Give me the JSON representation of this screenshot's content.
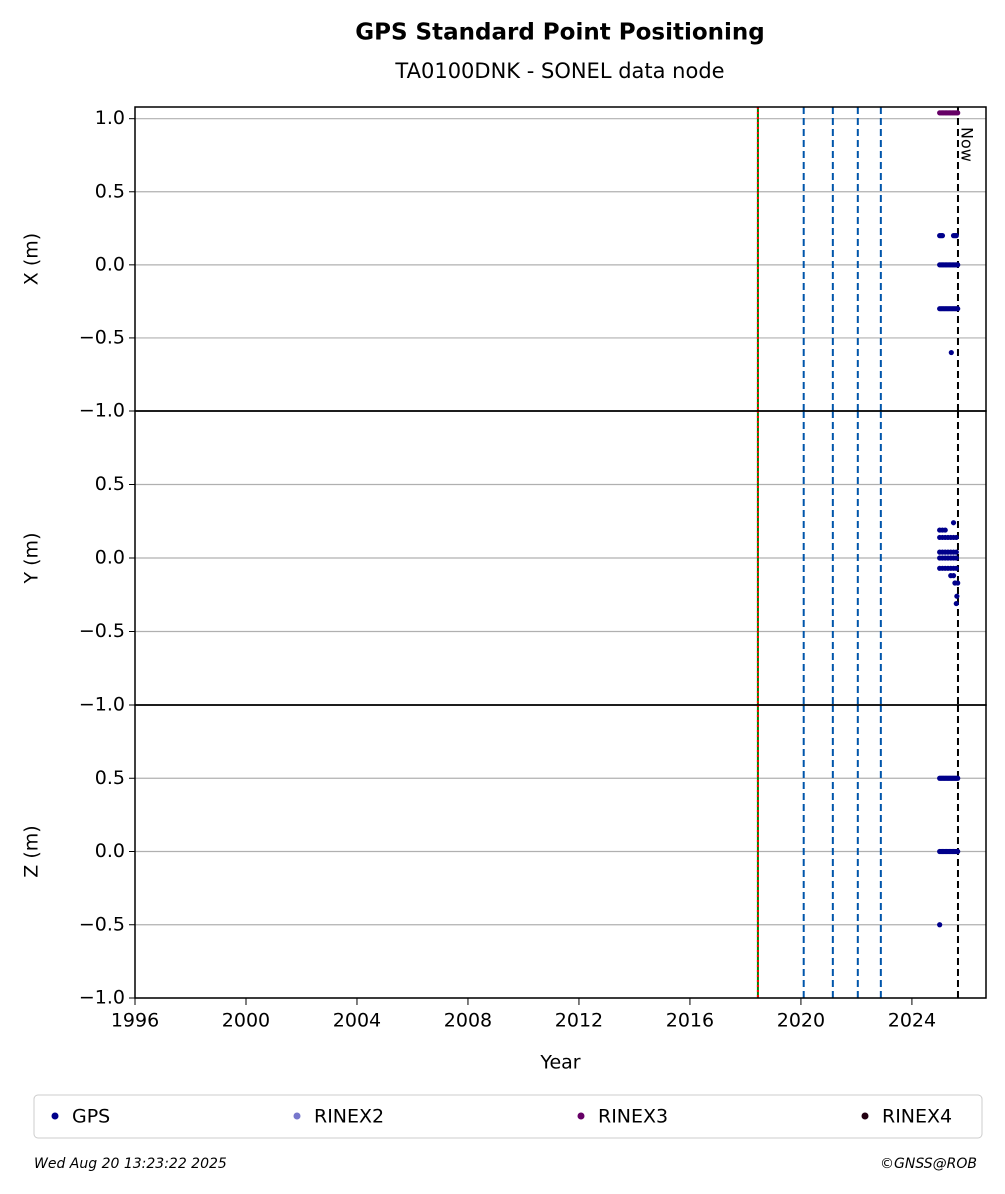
{
  "title": "GPS Standard Point Positioning",
  "subtitle": "TA0100DNK - SONEL data node",
  "footer_left": "Wed Aug 20 13:23:22 2025",
  "footer_right": "©GNSS@ROB",
  "legend": [
    {
      "name": "GPS",
      "color": "#00008b"
    },
    {
      "name": "RINEX2",
      "color": "#7777cc"
    },
    {
      "name": "RINEX3",
      "color": "#660066"
    },
    {
      "name": "RINEX4",
      "color": "#220011"
    }
  ],
  "vlines": [
    {
      "x": 2018.45,
      "color": "#008000",
      "style": "solid"
    },
    {
      "x": 2018.45,
      "color": "#ff0000",
      "style": "dotted"
    },
    {
      "x": 2020.1,
      "color": "#0055aa",
      "style": "dashed"
    },
    {
      "x": 2021.15,
      "color": "#0055aa",
      "style": "dashed"
    },
    {
      "x": 2022.05,
      "color": "#0055aa",
      "style": "dashed"
    },
    {
      "x": 2022.88,
      "color": "#0055aa",
      "style": "dashed"
    },
    {
      "x": 2025.66,
      "color": "#000000",
      "style": "dashed",
      "label": "Now"
    }
  ],
  "chart_data": [
    {
      "type": "scatter",
      "ylabel": "X (m)",
      "xlim": [
        1996,
        2026.67
      ],
      "ylim": [
        -1,
        1.08
      ],
      "grid": true,
      "yticks": [
        {
          "value": -1,
          "label": "−1.0"
        },
        {
          "value": -0.5,
          "label": "−0.5"
        },
        {
          "value": 0,
          "label": "0.0"
        },
        0.5,
        {
          "value": 1,
          "label": "1.0"
        }
      ],
      "series": [
        {
          "name": "GPS",
          "color": "#00008b",
          "x": [
            2025.0,
            2025.05,
            2025.1,
            2025.15,
            2025.2,
            2025.25,
            2025.3,
            2025.35,
            2025.4,
            2025.45,
            2025.5,
            2025.55,
            2025.6,
            2025.65,
            2025.0,
            2025.05,
            2025.1,
            2025.15,
            2025.2,
            2025.25,
            2025.3,
            2025.35,
            2025.4,
            2025.45,
            2025.5,
            2025.55,
            2025.6,
            2025.65,
            2025.0,
            2025.05,
            2025.1,
            2025.5,
            2025.55,
            2025.6,
            2025.42
          ],
          "values": [
            0,
            0,
            0,
            0,
            0,
            0,
            0,
            0,
            0,
            0,
            0,
            0,
            0,
            0,
            -0.3,
            -0.3,
            -0.3,
            -0.3,
            -0.3,
            -0.3,
            -0.3,
            -0.3,
            -0.3,
            -0.3,
            -0.3,
            -0.3,
            -0.3,
            -0.3,
            0.2,
            0.2,
            0.2,
            0.2,
            0.2,
            0.2,
            -0.6
          ]
        },
        {
          "name": "RINEX3",
          "color": "#660066",
          "x": [
            2025.0,
            2025.05,
            2025.1,
            2025.15,
            2025.2,
            2025.25,
            2025.3,
            2025.35,
            2025.4,
            2025.45,
            2025.5,
            2025.55,
            2025.6,
            2025.65
          ],
          "values": [
            1.04,
            1.04,
            1.04,
            1.04,
            1.04,
            1.04,
            1.04,
            1.04,
            1.04,
            1.04,
            1.04,
            1.04,
            1.04,
            1.04
          ]
        }
      ]
    },
    {
      "type": "scatter",
      "ylabel": "Y (m)",
      "xlim": [
        1996,
        2026.67
      ],
      "ylim": [
        -1,
        1
      ],
      "grid": true,
      "yticks": [
        {
          "value": -1,
          "label": "−1.0"
        },
        {
          "value": -0.5,
          "label": "−0.5"
        },
        {
          "value": 0,
          "label": "0.0"
        },
        0.5
      ],
      "series": [
        {
          "name": "GPS",
          "color": "#00008b",
          "x": [
            2025.0,
            2025.1,
            2025.2,
            2025.3,
            2025.4,
            2025.5,
            2025.6,
            2025.0,
            2025.1,
            2025.2,
            2025.3,
            2025.4,
            2025.5,
            2025.6,
            2025.0,
            2025.1,
            2025.2,
            2025.3,
            2025.4,
            2025.5,
            2025.6,
            2025.0,
            2025.1,
            2025.2,
            2025.3,
            2025.4,
            2025.5,
            2025.6,
            2025.0,
            2025.1,
            2025.2,
            2025.5,
            2025.4,
            2025.5,
            2025.55,
            2025.65,
            2025.62,
            2025.6
          ],
          "values": [
            0.14,
            0.14,
            0.14,
            0.14,
            0.14,
            0.14,
            0.14,
            0.04,
            0.04,
            0.04,
            0.04,
            0.04,
            0.04,
            0.04,
            0,
            0,
            0,
            0,
            0,
            0,
            0,
            -0.07,
            -0.07,
            -0.07,
            -0.07,
            -0.07,
            -0.07,
            -0.07,
            0.19,
            0.19,
            0.19,
            0.24,
            -0.12,
            -0.12,
            -0.17,
            -0.17,
            -0.26,
            -0.31
          ]
        }
      ]
    },
    {
      "type": "scatter",
      "ylabel": "Z (m)",
      "xlabel": "Year",
      "xlim": [
        1996,
        2026.67
      ],
      "ylim": [
        -1,
        1
      ],
      "grid": true,
      "xticks": [
        1996,
        2000,
        2004,
        2008,
        2012,
        2016,
        2020,
        2024
      ],
      "yticks": [
        {
          "value": -1,
          "label": "−1.0"
        },
        {
          "value": -0.5,
          "label": "−0.5"
        },
        {
          "value": 0,
          "label": "0.0"
        },
        0.5
      ],
      "series": [
        {
          "name": "GPS",
          "color": "#00008b",
          "x": [
            2025.0,
            2025.05,
            2025.1,
            2025.15,
            2025.2,
            2025.25,
            2025.3,
            2025.35,
            2025.4,
            2025.45,
            2025.5,
            2025.55,
            2025.6,
            2025.65,
            2025.0,
            2025.05,
            2025.1,
            2025.15,
            2025.2,
            2025.25,
            2025.3,
            2025.35,
            2025.4,
            2025.45,
            2025.5,
            2025.55,
            2025.6,
            2025.65,
            2025.0
          ],
          "values": [
            0.5,
            0.5,
            0.5,
            0.5,
            0.5,
            0.5,
            0.5,
            0.5,
            0.5,
            0.5,
            0.5,
            0.5,
            0.5,
            0.5,
            0,
            0,
            0,
            0,
            0,
            0,
            0,
            0,
            0,
            0,
            0,
            0,
            0,
            0,
            -0.5
          ]
        }
      ]
    }
  ]
}
